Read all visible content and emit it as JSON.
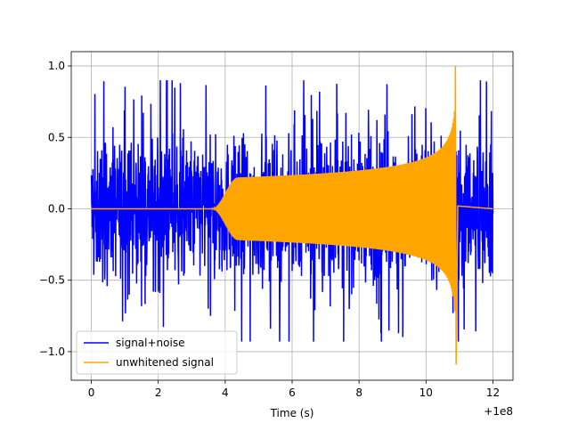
{
  "chart_data": {
    "type": "line",
    "title": "",
    "xlabel": "Time (s)",
    "ylabel": "",
    "x_offset_label": "+1e8",
    "xlim": [
      -0.6,
      12.6
    ],
    "ylim": [
      -1.2,
      1.1
    ],
    "x_ticks": [
      0,
      2,
      4,
      6,
      8,
      10,
      12
    ],
    "x_tick_labels": [
      "0",
      "2",
      "4",
      "6",
      "8",
      "10",
      "12"
    ],
    "y_ticks": [
      1.0,
      0.5,
      0.0,
      -0.5,
      -1.0
    ],
    "y_tick_labels": [
      "1.0",
      "0.5",
      "0.0",
      "−0.5",
      "−1.0"
    ],
    "grid": true,
    "legend_position": "lower-left",
    "series": [
      {
        "name": "signal+noise",
        "color": "#0000ff",
        "x_range": [
          0,
          12
        ],
        "noise_amplitude": 0.55,
        "min": -0.93,
        "max": 0.9
      },
      {
        "name": "unwhitened signal",
        "color": "#ffa500",
        "x_range": [
          0,
          12
        ],
        "onset": 3.6,
        "plateau_start": 4.4,
        "plateau_amplitude": 0.22,
        "merger_time": 10.9,
        "peak": 1.0,
        "trough": -1.09
      }
    ]
  }
}
